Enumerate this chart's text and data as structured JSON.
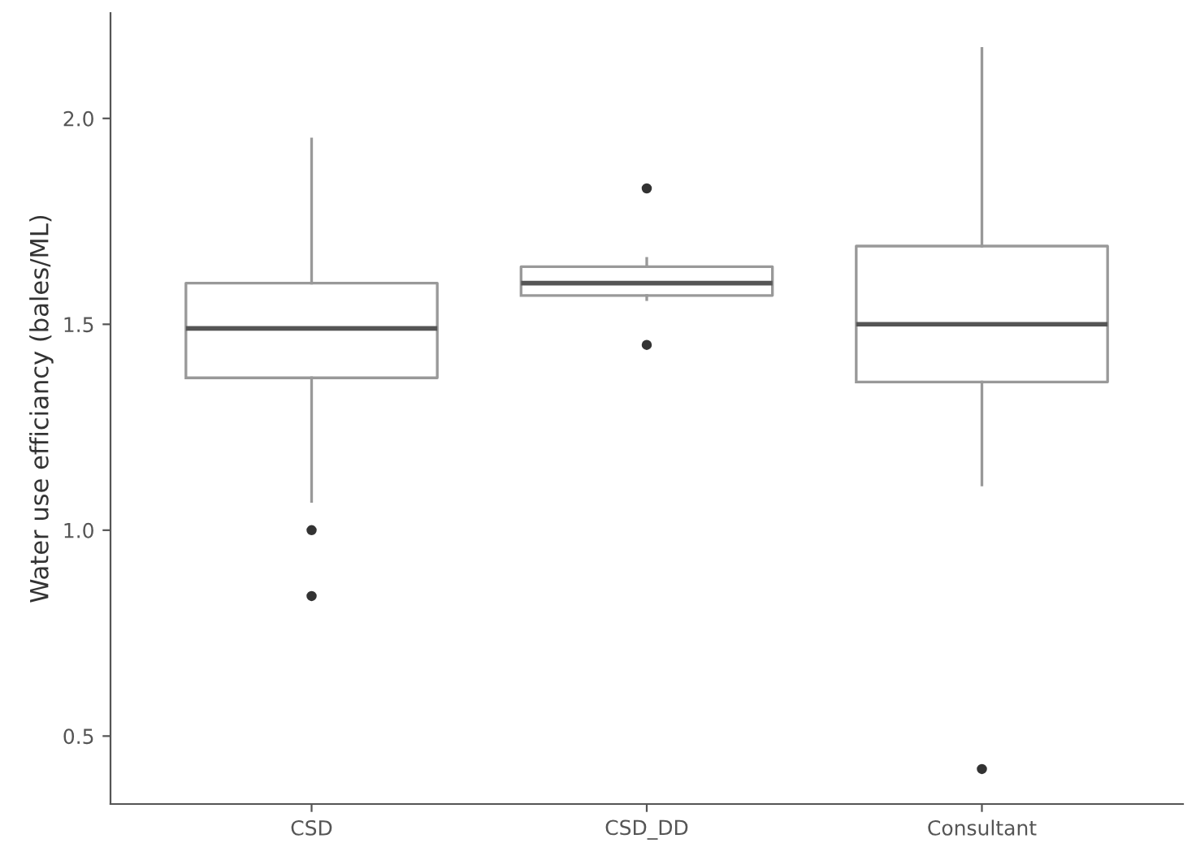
{
  "chart_data": {
    "type": "box",
    "ylabel": "Water use efficiancy (bales/ML)",
    "categories": [
      "CSD",
      "CSD_DD",
      "Consultant"
    ],
    "boxes": [
      {
        "low": 1.07,
        "q1": 1.37,
        "median": 1.49,
        "q3": 1.6,
        "high": 1.95,
        "outliers": [
          1.0,
          0.84
        ]
      },
      {
        "low": 1.56,
        "q1": 1.57,
        "median": 1.6,
        "q3": 1.64,
        "high": 1.66,
        "outliers": [
          1.83,
          1.45
        ]
      },
      {
        "low": 1.11,
        "q1": 1.36,
        "median": 1.5,
        "q3": 1.69,
        "high": 2.17,
        "outliers": [
          0.42
        ]
      }
    ],
    "color": "#999999",
    "ylim": [
      0.335,
      2.256
    ],
    "yticks": [
      {
        "value": 0.5,
        "label": "0.5"
      },
      {
        "value": 1.0,
        "label": "1.0"
      },
      {
        "value": 1.5,
        "label": "1.5"
      },
      {
        "value": 2.0,
        "label": "2.0"
      }
    ],
    "grid": false
  }
}
